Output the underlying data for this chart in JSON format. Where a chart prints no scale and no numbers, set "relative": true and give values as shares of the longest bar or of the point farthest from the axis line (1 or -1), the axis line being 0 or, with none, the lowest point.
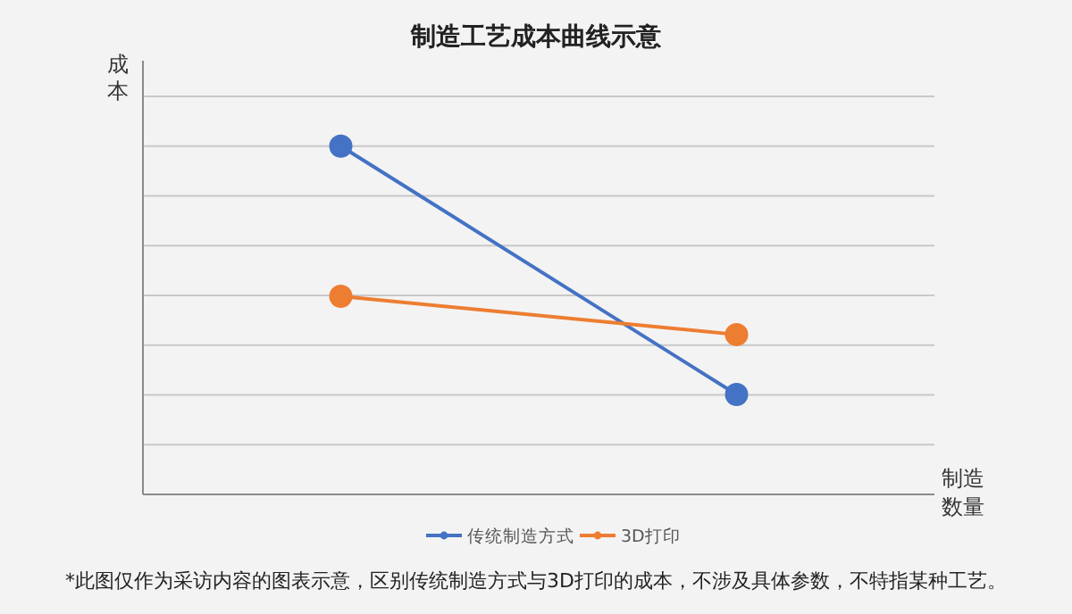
{
  "chart_data": {
    "type": "line",
    "title": "制造工艺成本曲线示意",
    "xlabel": "制造数量",
    "ylabel": "成本",
    "categories": [
      null,
      null
    ],
    "relative": true,
    "grid": "y",
    "legend": "bottom",
    "marker": "circle",
    "line_style": "solid",
    "series": [
      {
        "name": "传统制造方式",
        "color": "#4472c4",
        "values": [
          1,
          0.287
        ]
      },
      {
        "name": "3D打印",
        "color": "#ed7d31",
        "values": [
          0.569,
          0.459
        ]
      }
    ],
    "annotations": [
      "*此图仅作为采访内容的图表示意，区别传统制造方式与3D打印的成本，不涉及具体参数，不特指某种工艺。"
    ]
  }
}
